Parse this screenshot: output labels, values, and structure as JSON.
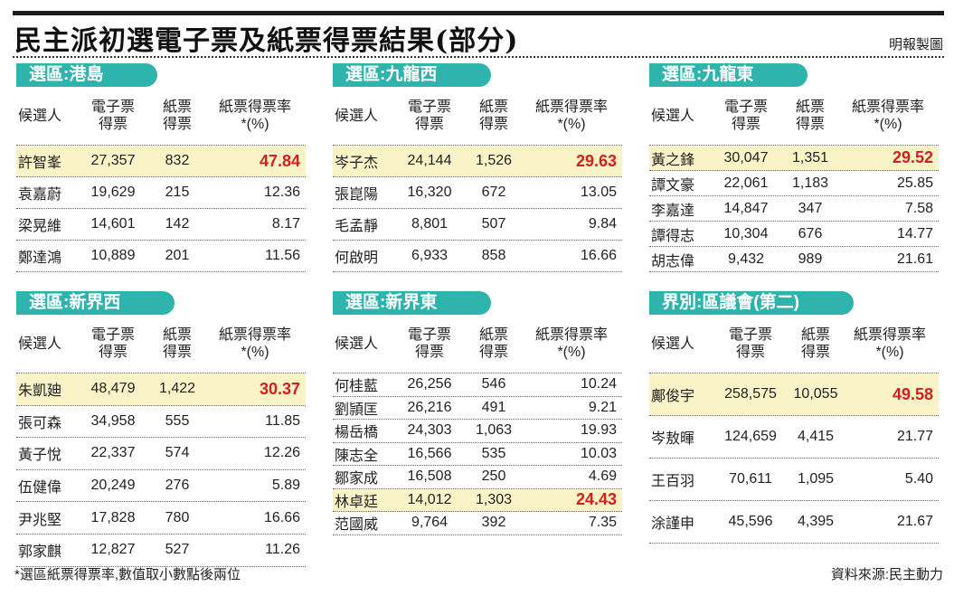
{
  "title": "民主派初選電子票及紙票得票結果(部分)",
  "credit": "明報製圖",
  "footnote": "*選區紙票得票率,數值取小數點後兩位",
  "source": "資料來源:民主動力",
  "colors": {
    "accent": "#2fb3ad",
    "highlight_row": "#fbf3c8",
    "winner_text": "#d21f1f"
  },
  "headers": {
    "name": "候選人",
    "evote": "電子票\n得票",
    "paper": "紙票\n得票",
    "rate_hk": "紙票得票率\n*(%)",
    "rate": "紙票得票率\n*(%)"
  },
  "panels": {
    "hk": {
      "label": "選區:港島",
      "rows": [
        {
          "name": "許智峯",
          "e": "27,357",
          "p": "832",
          "r": "47.84"
        },
        {
          "name": "袁嘉蔚",
          "e": "19,629",
          "p": "215",
          "r": "12.36"
        },
        {
          "name": "梁晃維",
          "e": "14,601",
          "p": "142",
          "r": "8.17"
        },
        {
          "name": "鄭達鴻",
          "e": "10,889",
          "p": "201",
          "r": "11.56"
        }
      ]
    },
    "kw": {
      "label": "選區:九龍西",
      "rows": [
        {
          "name": "岑子杰",
          "e": "24,144",
          "p": "1,526",
          "r": "29.63"
        },
        {
          "name": "張崑陽",
          "e": "16,320",
          "p": "672",
          "r": "13.05"
        },
        {
          "name": "毛孟靜",
          "e": "8,801",
          "p": "507",
          "r": "9.84"
        },
        {
          "name": "何啟明",
          "e": "6,933",
          "p": "858",
          "r": "16.66"
        }
      ]
    },
    "ke": {
      "label": "選區:九龍東",
      "rows": [
        {
          "name": "黃之鋒",
          "e": "30,047",
          "p": "1,351",
          "r": "29.52"
        },
        {
          "name": "譚文豪",
          "e": "22,061",
          "p": "1,183",
          "r": "25.85"
        },
        {
          "name": "李嘉達",
          "e": "14,847",
          "p": "347",
          "r": "7.58"
        },
        {
          "name": "譚得志",
          "e": "10,304",
          "p": "676",
          "r": "14.77"
        },
        {
          "name": "胡志偉",
          "e": "9,432",
          "p": "989",
          "r": "21.61"
        }
      ]
    },
    "nw": {
      "label": "選區:新界西",
      "rows": [
        {
          "name": "朱凱廸",
          "e": "48,479",
          "p": "1,422",
          "r": "30.37"
        },
        {
          "name": "張可森",
          "e": "34,958",
          "p": "555",
          "r": "11.85"
        },
        {
          "name": "黃子悅",
          "e": "22,337",
          "p": "574",
          "r": "12.26"
        },
        {
          "name": "伍健偉",
          "e": "20,249",
          "p": "276",
          "r": "5.89"
        },
        {
          "name": "尹兆堅",
          "e": "17,828",
          "p": "780",
          "r": "16.66"
        },
        {
          "name": "郭家麒",
          "e": "12,827",
          "p": "527",
          "r": "11.26"
        }
      ]
    },
    "ne": {
      "label": "選區:新界東",
      "rows": [
        {
          "name": "何桂藍",
          "e": "26,256",
          "p": "546",
          "r": "10.24"
        },
        {
          "name": "劉頴匡",
          "e": "26,216",
          "p": "491",
          "r": "9.21"
        },
        {
          "name": "楊岳橋",
          "e": "24,303",
          "p": "1,063",
          "r": "19.93"
        },
        {
          "name": "陳志全",
          "e": "16,566",
          "p": "535",
          "r": "10.03"
        },
        {
          "name": "鄒家成",
          "e": "16,508",
          "p": "250",
          "r": "4.69"
        },
        {
          "name": "林卓廷",
          "e": "14,012",
          "p": "1,303",
          "r": "24.43"
        },
        {
          "name": "范國威",
          "e": "9,764",
          "p": "392",
          "r": "7.35"
        }
      ]
    },
    "dc": {
      "label": "界別:區議會(第二)",
      "rows": [
        {
          "name": "鄺俊宇",
          "e": "258,575",
          "p": "10,055",
          "r": "49.58"
        },
        {
          "name": "岑敖暉",
          "e": "124,659",
          "p": "4,415",
          "r": "21.77"
        },
        {
          "name": "王百羽",
          "e": "70,611",
          "p": "1,095",
          "r": "5.40"
        },
        {
          "name": "涂謹申",
          "e": "45,596",
          "p": "4,395",
          "r": "21.67"
        }
      ]
    }
  }
}
